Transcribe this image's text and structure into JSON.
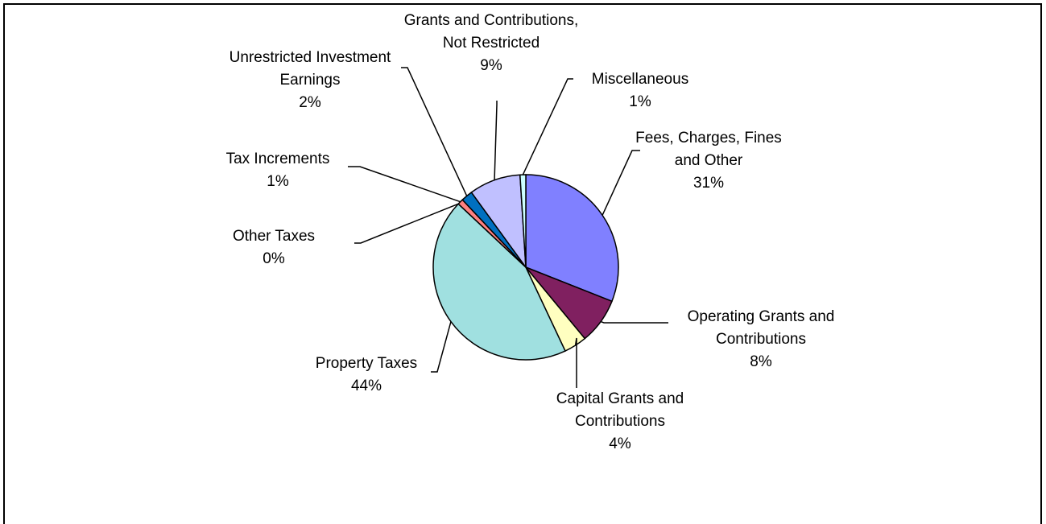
{
  "chart_data": {
    "type": "pie",
    "categories": [
      "Fees, Charges, Fines and Other",
      "Operating Grants and Contributions",
      "Capital Grants and Contributions",
      "Property Taxes",
      "Other Taxes",
      "Tax Increments",
      "Unrestricted Investment Earnings",
      "Grants and Contributions, Not Restricted",
      "Miscellaneous"
    ],
    "values": [
      31,
      8,
      4,
      44,
      0,
      1,
      2,
      9,
      1
    ],
    "value_labels": [
      "31%",
      "8%",
      "4%",
      "44%",
      "0%",
      "1%",
      "2%",
      "9%",
      "1%"
    ],
    "colors": [
      "#8080ff",
      "#802060",
      "#ffffc0",
      "#a0e0e0",
      "#4040a0",
      "#ff8080",
      "#0070c0",
      "#c0c0ff",
      "#ccffff"
    ]
  }
}
